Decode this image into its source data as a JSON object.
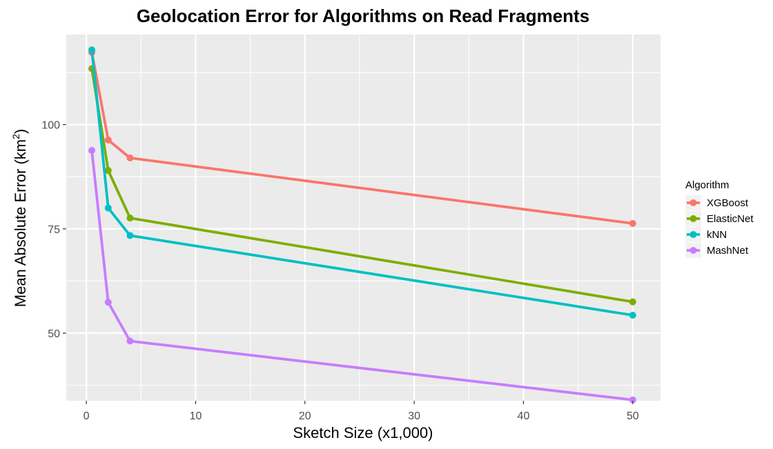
{
  "chart_data": {
    "type": "line",
    "title": "Geolocation Error for Algorithms on Read Fragments",
    "xlabel": "Sketch Size (x1,000)",
    "ylabel": "Mean Absolute Error (km",
    "ylabel_sup": "2",
    "ylabel_end": ")",
    "xlim": [
      -1.84,
      52.54
    ],
    "ylim": [
      33.8,
      121.6
    ],
    "x_ticks": [
      0,
      10,
      20,
      30,
      40,
      50
    ],
    "y_ticks": [
      50,
      75,
      100
    ],
    "x": [
      0.5,
      2,
      4,
      50
    ],
    "grid": true,
    "legend": {
      "title": "Algorithm",
      "position": "right"
    },
    "series": [
      {
        "name": "XGBoost",
        "color": "#F8766D",
        "values": [
          117.3,
          96.3,
          92.0,
          76.3
        ]
      },
      {
        "name": "ElasticNet",
        "color": "#7CAE00",
        "values": [
          113.4,
          89.0,
          77.6,
          57.5
        ]
      },
      {
        "name": "kNN",
        "color": "#00BFC4",
        "values": [
          117.9,
          80.0,
          73.4,
          54.3
        ]
      },
      {
        "name": "MashNet",
        "color": "#C77CFF",
        "values": [
          93.8,
          57.4,
          48.1,
          34.0
        ]
      }
    ]
  }
}
